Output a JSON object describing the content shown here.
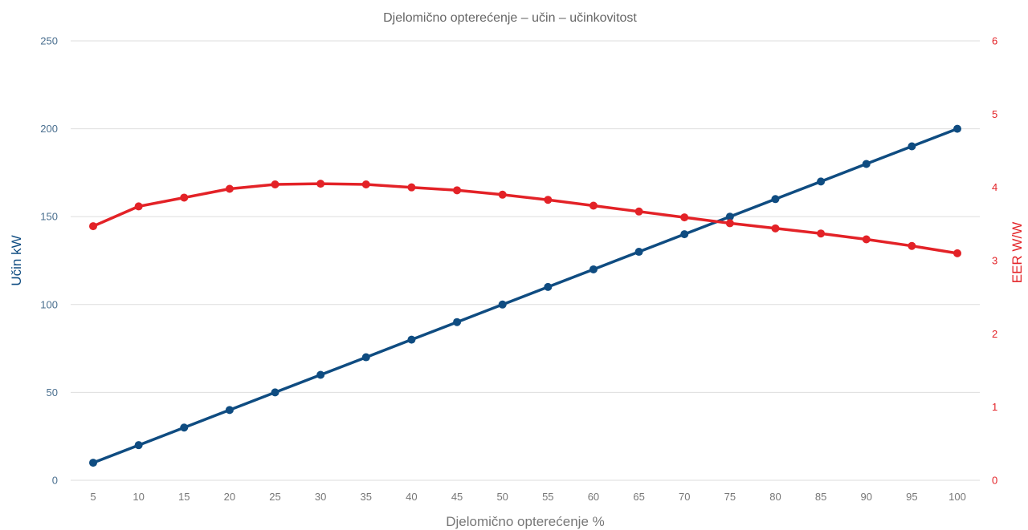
{
  "chart_data": {
    "type": "line",
    "title": "Djelomično opterećenje – učin – učinkovitost",
    "xlabel": "Djelomično opterećenje %",
    "ylabel": "Učin kW",
    "y2label": "EER W/W",
    "x": [
      5,
      10,
      15,
      20,
      25,
      30,
      35,
      40,
      45,
      50,
      55,
      60,
      65,
      70,
      75,
      80,
      85,
      90,
      95,
      100
    ],
    "yticks": [
      0,
      50,
      100,
      150,
      200,
      250
    ],
    "y2ticks": [
      0,
      1,
      2,
      3,
      4,
      5,
      6
    ],
    "ylim": [
      0,
      250
    ],
    "y2lim": [
      0,
      6
    ],
    "grid": true,
    "series": [
      {
        "axis": "left",
        "color": "#0f4c81",
        "values": [
          10,
          20,
          30,
          40,
          50,
          60,
          70,
          80,
          90,
          100,
          110,
          120,
          130,
          140,
          150,
          160,
          170,
          180,
          190,
          200
        ]
      },
      {
        "axis": "right",
        "color": "#e32227",
        "values": [
          3.47,
          3.74,
          3.86,
          3.98,
          4.04,
          4.05,
          4.04,
          4.0,
          3.96,
          3.9,
          3.83,
          3.75,
          3.67,
          3.59,
          3.51,
          3.44,
          3.37,
          3.29,
          3.2,
          3.1
        ]
      }
    ]
  }
}
